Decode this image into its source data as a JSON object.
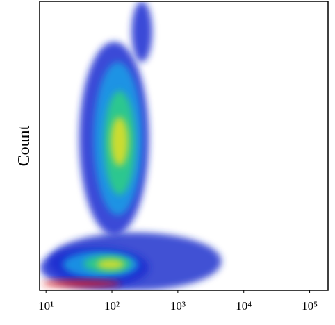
{
  "chart_data": {
    "type": "density",
    "y_label": "Count",
    "xscale": "log",
    "xlim": [
      8,
      190000
    ],
    "ylim": [
      0,
      100
    ],
    "xticks": [
      {
        "value": 10,
        "label": "10¹"
      },
      {
        "value": 100,
        "label": "10²"
      },
      {
        "value": 1000,
        "label": "10³"
      },
      {
        "value": 10000,
        "label": "10⁴"
      },
      {
        "value": 100000,
        "label": "10⁵"
      }
    ],
    "blobs": [
      {
        "color": "#2233cc",
        "x": [
          11,
          4570
        ],
        "y": [
          0,
          20
        ]
      },
      {
        "color": "#1a2ad0",
        "x": [
          32,
          363
        ],
        "y": [
          19,
          86
        ]
      },
      {
        "color": "#1a2ad0",
        "x": [
          199,
          407
        ],
        "y": [
          79,
          100
        ]
      },
      {
        "color": "#1a2ad0",
        "x": [
          8.2,
          363
        ],
        "y": [
          0.7,
          15
        ]
      },
      {
        "color": "#1aa0e6",
        "x": [
          53,
          288
        ],
        "y": [
          26,
          79
        ]
      },
      {
        "color": "#1aa0e6",
        "x": [
          18,
          253
        ],
        "y": [
          4.3,
          13.5
        ]
      },
      {
        "color": "#30d080",
        "x": [
          76,
          224
        ],
        "y": [
          33,
          69
        ]
      },
      {
        "color": "#30d080",
        "x": [
          37,
          199
        ],
        "y": [
          6.3,
          12
        ]
      },
      {
        "color": "#e8e020",
        "x": [
          96,
          177
        ],
        "y": [
          43,
          60
        ]
      },
      {
        "color": "#e8e020",
        "x": [
          59,
          155
        ],
        "y": [
          7.2,
          10.8
        ]
      },
      {
        "color": "#e02020",
        "x": [
          8.7,
          138
        ],
        "y": [
          1.0,
          3.6
        ]
      }
    ]
  }
}
